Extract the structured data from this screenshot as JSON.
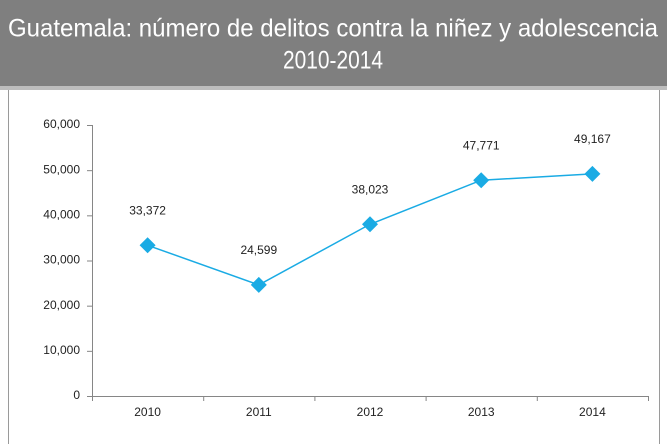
{
  "chart_data": {
    "type": "line",
    "title": [
      "Guatemala: número de delitos contra la niñez y adolescencia",
      "2010-2014"
    ],
    "categories": [
      "2010",
      "2011",
      "2012",
      "2013",
      "2014"
    ],
    "values": [
      33372,
      24599,
      38023,
      47771,
      49167
    ],
    "value_labels": [
      "33,372",
      "24,599",
      "38,023",
      "47,771",
      "49,167"
    ],
    "color": "#1aabe4",
    "ylim": [
      0,
      60000
    ],
    "yticks": [
      0,
      {
        "value": 10000,
        "label": "10,000"
      },
      {
        "value": 20000,
        "label": "20,000"
      },
      {
        "value": 30000,
        "label": "30,000"
      },
      {
        "value": 40000,
        "label": "40,000"
      },
      {
        "value": 50000,
        "label": "50,000"
      },
      {
        "value": 60000,
        "label": "60,000"
      }
    ],
    "grid": false
  }
}
